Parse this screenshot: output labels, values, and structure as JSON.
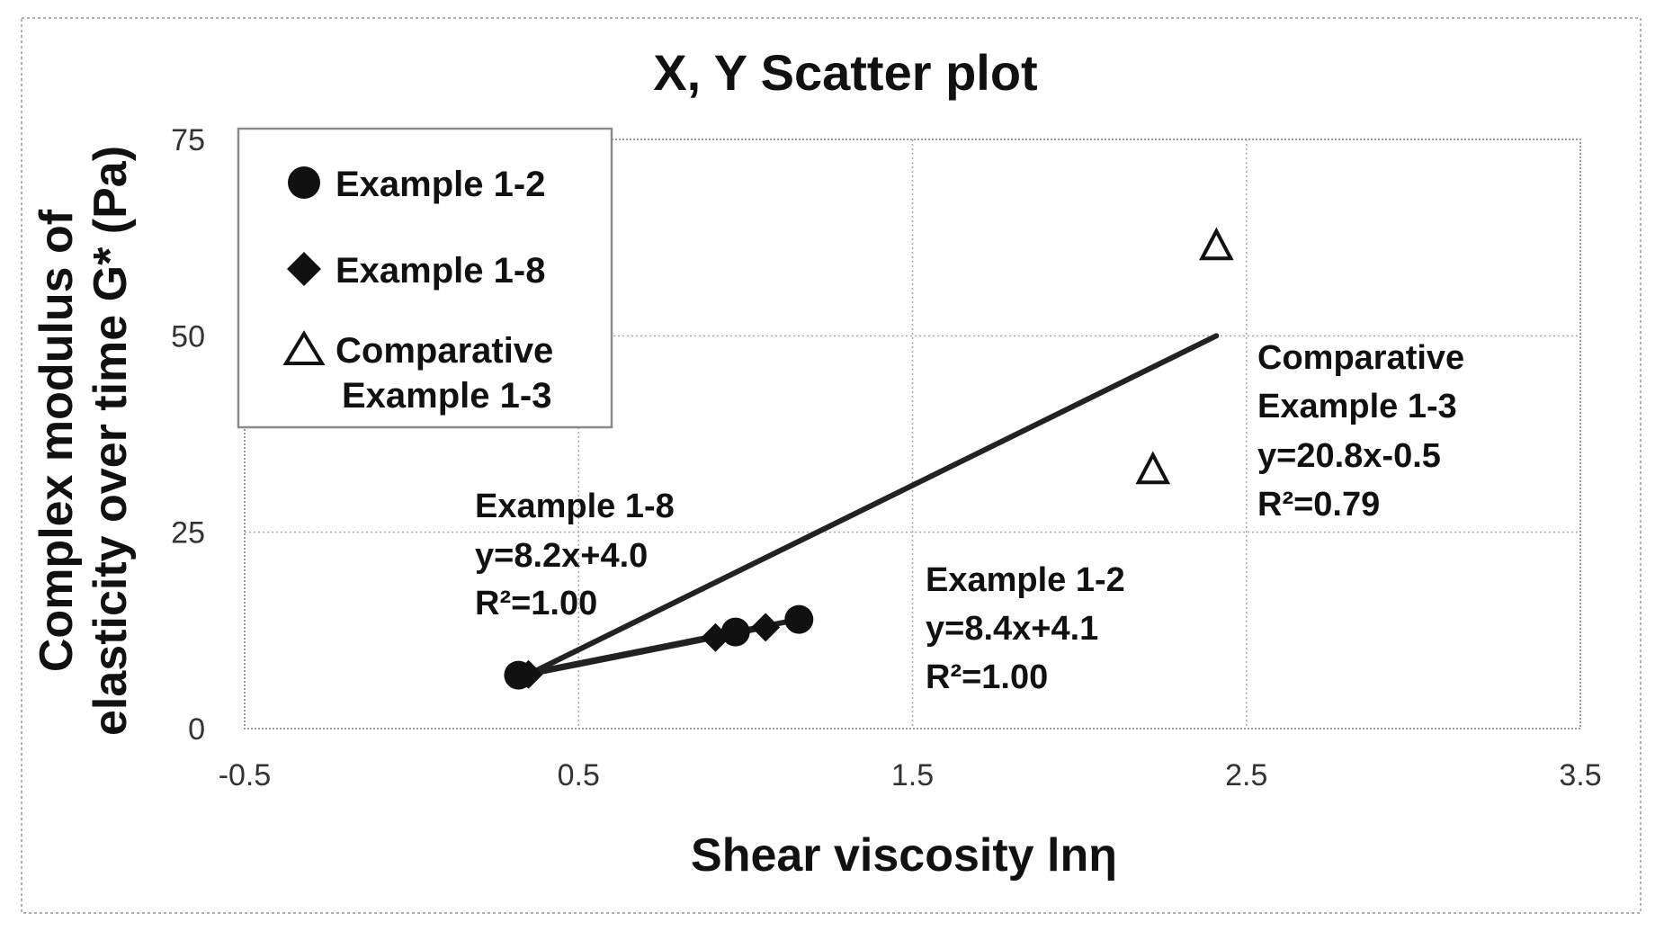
{
  "chart_data": {
    "type": "scatter",
    "title": "X, Y Scatter plot",
    "xlabel": "Shear viscosity lnη",
    "ylabel_line1": "Complex modulus of",
    "ylabel_line2": "elasticity over time G* (Pa)",
    "xlim": [
      -0.5,
      3.5
    ],
    "ylim": [
      0,
      75
    ],
    "x_ticks": [
      -0.5,
      0.5,
      1.5,
      2.5,
      3.5
    ],
    "x_tick_labels": [
      "-0.5",
      "0.5",
      "1.5",
      "2.5",
      "3.5"
    ],
    "y_ticks": [
      0,
      25,
      50,
      75
    ],
    "y_tick_labels": [
      "0",
      "25",
      "50",
      "75"
    ],
    "grid": true,
    "legend_position": "top-left",
    "legend": [
      {
        "marker": "circle",
        "label_line1": "Example 1-2",
        "label_line2": ""
      },
      {
        "marker": "diamond",
        "label_line1": "Example 1-8",
        "label_line2": ""
      },
      {
        "marker": "triangle",
        "label_line1": "Comparative",
        "label_line2": "Example 1-3"
      }
    ],
    "series": [
      {
        "name": "Example 1-2",
        "marker": "circle",
        "points": [
          {
            "x": 0.32,
            "y": 6.8
          },
          {
            "x": 0.97,
            "y": 12.3
          },
          {
            "x": 1.16,
            "y": 13.9
          }
        ],
        "trend": {
          "x0": 0.32,
          "y0": 6.8,
          "x1": 1.16,
          "y1": 13.9
        }
      },
      {
        "name": "Example 1-8",
        "marker": "diamond",
        "points": [
          {
            "x": 0.35,
            "y": 6.9
          },
          {
            "x": 0.91,
            "y": 11.6
          },
          {
            "x": 1.06,
            "y": 12.9
          }
        ],
        "trend": {
          "x0": 0.35,
          "y0": 6.9,
          "x1": 1.06,
          "y1": 12.9
        }
      },
      {
        "name": "Comparative Example 1-3",
        "marker": "triangle",
        "points": [
          {
            "x": 2.22,
            "y": 33.0
          },
          {
            "x": 2.41,
            "y": 61.5
          }
        ],
        "trend": {
          "x0": 0.35,
          "y0": 6.9,
          "x1": 2.41,
          "y1": 50.0
        }
      }
    ],
    "annotations": [
      {
        "lines": [
          "Example 1-8",
          "y=8.2x+4.0",
          "R²=1.00"
        ]
      },
      {
        "lines": [
          "Example 1-2",
          "y=8.4x+4.1",
          "R²=1.00"
        ]
      },
      {
        "lines": [
          "Comparative",
          "Example 1-3",
          "y=20.8x-0.5",
          "R²=0.79"
        ]
      }
    ]
  }
}
